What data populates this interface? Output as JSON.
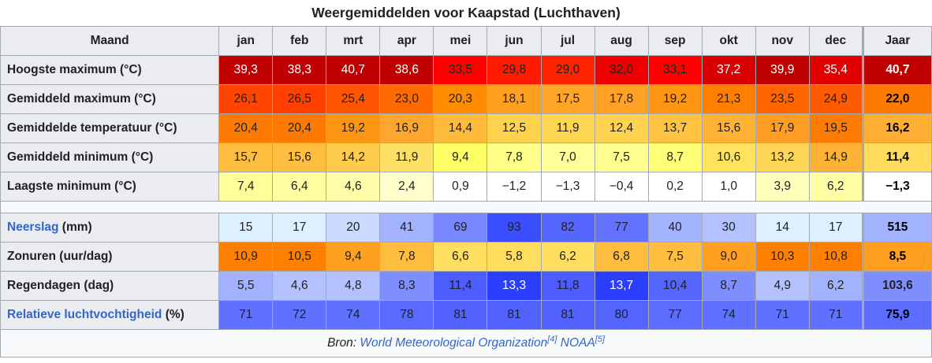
{
  "caption": "Weergemiddelden voor Kaapstad (Luchthaven)",
  "header": {
    "label": "Maand",
    "months": [
      "jan",
      "feb",
      "mrt",
      "apr",
      "mei",
      "jun",
      "jul",
      "aug",
      "sep",
      "okt",
      "nov",
      "dec"
    ],
    "year": "Jaar"
  },
  "rows": [
    {
      "label": "Hoogste maximum (°C)",
      "link": "",
      "suffix": "",
      "values": [
        "39,3",
        "38,3",
        "40,7",
        "38,6",
        "33,5",
        "29,8",
        "29,0",
        "32,0",
        "33,1",
        "37,2",
        "39,9",
        "35,4"
      ],
      "year": "40,7",
      "colors": [
        "#c00000",
        "#c00000",
        "#c00000",
        "#c00000",
        "#ff0000",
        "#ff1a00",
        "#ff2300",
        "#ee0000",
        "#ff0000",
        "#d80000",
        "#c00000",
        "#e00000"
      ],
      "year_color": "#c00000",
      "text_colors": [
        "#ffffff",
        "#ffffff",
        "#ffffff",
        "#ffffff",
        "#202122",
        "#202122",
        "#202122",
        "#202122",
        "#202122",
        "#ffffff",
        "#ffffff",
        "#ffffff"
      ],
      "year_text_color": "#ffffff"
    },
    {
      "label": "Gemiddeld maximum (°C)",
      "link": "",
      "suffix": "",
      "values": [
        "26,1",
        "26,5",
        "25,4",
        "23,0",
        "20,3",
        "18,1",
        "17,5",
        "17,8",
        "19,2",
        "21,3",
        "23,5",
        "24,9"
      ],
      "year": "22,0",
      "colors": [
        "#ff4500",
        "#ff4000",
        "#ff5500",
        "#ff6a00",
        "#ff8c00",
        "#ffa020",
        "#ffa527",
        "#ffa223",
        "#ff9611",
        "#ff7f00",
        "#ff6600",
        "#ff5a00"
      ],
      "year_color": "#ff7a00"
    },
    {
      "label": "Gemiddelde temperatuur (°C)",
      "link": "",
      "suffix": "",
      "values": [
        "20,4",
        "20,4",
        "19,2",
        "16,9",
        "14,4",
        "12,5",
        "11,9",
        "12,4",
        "13,7",
        "15,6",
        "17,9",
        "19,5"
      ],
      "year": "16,2",
      "colors": [
        "#ff7a00",
        "#ff7a00",
        "#ff9613",
        "#ffa62e",
        "#ffbc3c",
        "#ffd24e",
        "#ffd652",
        "#ffd24f",
        "#ffc341",
        "#ffb236",
        "#ff9e22",
        "#ff7c02"
      ],
      "year_color": "#ffaf34"
    },
    {
      "label": "Gemiddeld minimum (°C)",
      "link": "",
      "suffix": "",
      "values": [
        "15,7",
        "15,6",
        "14,2",
        "11,9",
        "9,4",
        "7,8",
        "7,0",
        "7,5",
        "8,7",
        "10,6",
        "13,2",
        "14,9"
      ],
      "year": "11,4",
      "colors": [
        "#ffbd3f",
        "#ffbe40",
        "#ffcc4c",
        "#ffe066",
        "#ffff66",
        "#ffff8a",
        "#ffff99",
        "#ffff8f",
        "#ffff78",
        "#ffe25e",
        "#ffd555",
        "#ffb236"
      ],
      "year_color": "#ffdc5b"
    },
    {
      "label": "Laagste minimum (°C)",
      "link": "",
      "suffix": "",
      "values": [
        "7,4",
        "6,4",
        "4,6",
        "2,4",
        "0,9",
        "−1,2",
        "−1,3",
        "−0,4",
        "0,2",
        "1,0",
        "3,9",
        "6,2"
      ],
      "year": "−1,3",
      "colors": [
        "#ffff99",
        "#ffffa2",
        "#ffffaa",
        "#ffffcc",
        "#ffffff",
        "#ffffff",
        "#ffffff",
        "#ffffff",
        "#ffffff",
        "#ffffff",
        "#ffffbb",
        "#ffffa6"
      ],
      "year_color": "#ffffff"
    },
    {
      "label": "Neerslag",
      "link": "Neerslag",
      "suffix": " (mm)",
      "values": [
        "15",
        "17",
        "20",
        "41",
        "69",
        "93",
        "82",
        "77",
        "40",
        "30",
        "14",
        "17"
      ],
      "year": "515",
      "colors": [
        "#ddf0ff",
        "#ddf0ff",
        "#c9d9ff",
        "#a3b2ff",
        "#7886ff",
        "#3b4eff",
        "#5566ff",
        "#6473ff",
        "#a3b2ff",
        "#b3c2ff",
        "#ddf0ff",
        "#ddf0ff"
      ],
      "year_color": "#a3b2ff"
    },
    {
      "label": "Zonuren (uur/dag)",
      "link": "",
      "suffix": "",
      "values": [
        "10,9",
        "10,5",
        "9,4",
        "7,8",
        "6,6",
        "5,8",
        "6,2",
        "6,8",
        "7,5",
        "9,0",
        "10,3",
        "10,8"
      ],
      "year": "8,5",
      "colors": [
        "#ff8000",
        "#ff8000",
        "#ffa022",
        "#ffbd3f",
        "#ffdd5f",
        "#ffdd5f",
        "#ffdd5f",
        "#ffbd3f",
        "#ffbd3f",
        "#ffa022",
        "#ff8000",
        "#ff8000"
      ],
      "year_color": "#ffa022"
    },
    {
      "label": "Regendagen (dag)",
      "link": "",
      "suffix": "",
      "values": [
        "5,5",
        "4,6",
        "4,8",
        "8,3",
        "11,4",
        "13,3",
        "11,8",
        "13,7",
        "10,4",
        "8,7",
        "4,9",
        "6,2"
      ],
      "year": "103,6",
      "colors": [
        "#a3b2ff",
        "#b3c2ff",
        "#b3c2ff",
        "#7f8eff",
        "#4d5cff",
        "#2b3eff",
        "#4d5cff",
        "#2b3eff",
        "#5566ff",
        "#7f8eff",
        "#b3c2ff",
        "#a3b2ff"
      ],
      "year_color": "#7f8eff",
      "text_colors": [
        "#202122",
        "#202122",
        "#202122",
        "#202122",
        "#202122",
        "#ffffff",
        "#202122",
        "#ffffff",
        "#202122",
        "#202122",
        "#202122",
        "#202122"
      ],
      "year_text_color": "#202122"
    },
    {
      "label": "Relatieve luchtvochtigheid",
      "link": "Relatieve luchtvochtigheid",
      "suffix": " (%)",
      "values": [
        "71",
        "72",
        "74",
        "78",
        "81",
        "81",
        "81",
        "80",
        "77",
        "74",
        "71",
        "71"
      ],
      "year": "75,9",
      "colors": [
        "#6070ff",
        "#6070ff",
        "#6070ff",
        "#5a6aff",
        "#5262ff",
        "#5262ff",
        "#5262ff",
        "#5464ff",
        "#5c6cff",
        "#6070ff",
        "#6070ff",
        "#6070ff"
      ],
      "year_color": "#5c6cff"
    }
  ],
  "footer": {
    "prefix": "Bron: ",
    "source1": "World Meteorological Organization",
    "ref1": "[4]",
    "source2": "NOAA",
    "ref2": "[5]"
  }
}
